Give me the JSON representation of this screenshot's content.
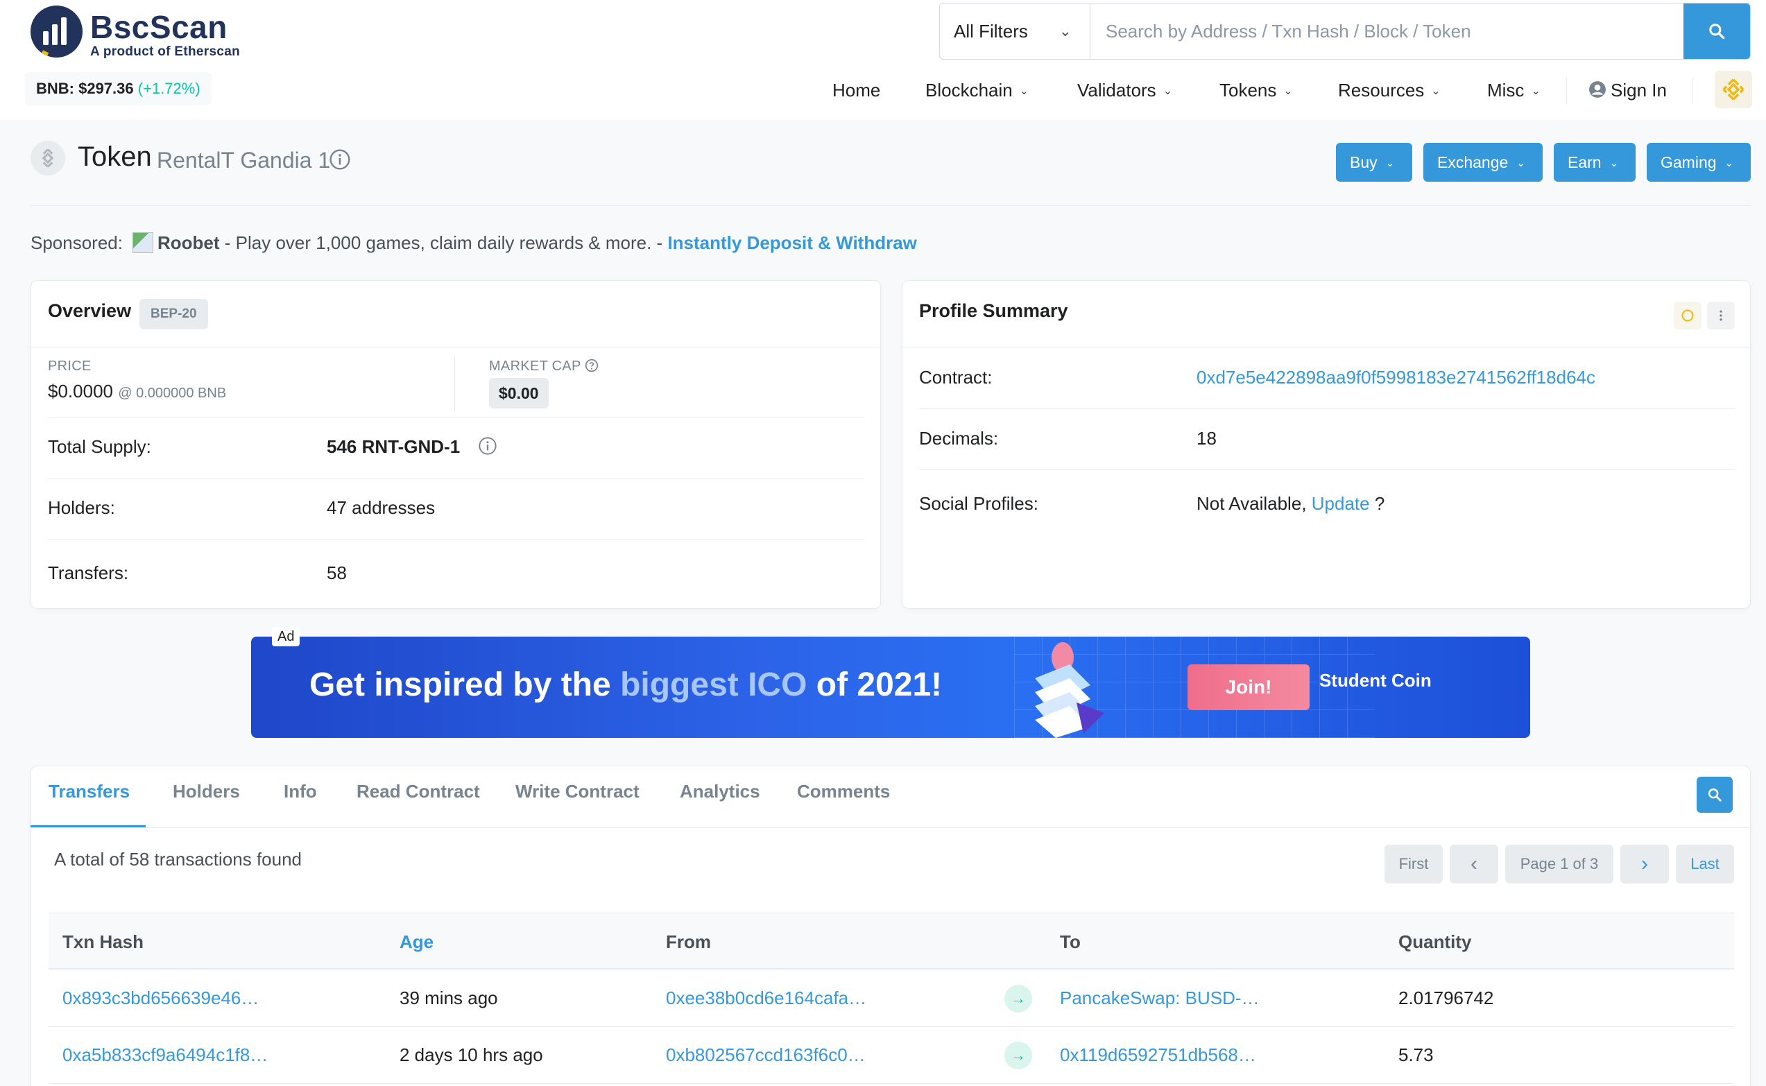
{
  "brand": {
    "name": "BscScan",
    "tagline": "A product of Etherscan"
  },
  "price": {
    "label": "BNB: $297.36",
    "change": "(+1.72%)"
  },
  "search": {
    "filter": "All Filters",
    "placeholder": "Search by Address / Txn Hash / Block / Token"
  },
  "nav": {
    "items": [
      "Home",
      "Blockchain",
      "Validators",
      "Tokens",
      "Resources",
      "Misc"
    ],
    "sign_in": "Sign In"
  },
  "title": {
    "prefix": "Token",
    "name": "RentalT Gandia 1"
  },
  "actions": [
    "Buy",
    "Exchange",
    "Earn",
    "Gaming"
  ],
  "sponsored": {
    "label": "Sponsored:",
    "brand": "Roobet",
    "text": " - Play over 1,000 games, claim daily rewards & more. - ",
    "cta": "Instantly Deposit & Withdraw"
  },
  "overview": {
    "title": "Overview",
    "badge": "BEP-20",
    "price_label": "PRICE",
    "price_value": "$0.0000",
    "price_bnb": "@ 0.000000 BNB",
    "mcap_label": "MARKET CAP",
    "mcap_value": "$0.00",
    "supply_label": "Total Supply:",
    "supply_value": "546 RNT-GND-1",
    "holders_label": "Holders:",
    "holders_value": "47 addresses",
    "transfers_label": "Transfers:",
    "transfers_value": "58"
  },
  "profile": {
    "title": "Profile Summary",
    "contract_label": "Contract:",
    "contract_value": "0xd7e5e422898aa9f0f5998183e2741562ff18d64c",
    "decimals_label": "Decimals:",
    "decimals_value": "18",
    "social_label": "Social Profiles:",
    "social_value": "Not Available, ",
    "social_link": "Update",
    "social_suffix": " ?"
  },
  "ad": {
    "tag": "Ad",
    "text_a": "Get inspired by the ",
    "text_b": "biggest ICO",
    "text_c": " of 2021!",
    "join": "Join!",
    "coin": "Student Coin"
  },
  "tabs": [
    "Transfers",
    "Holders",
    "Info",
    "Read Contract",
    "Write Contract",
    "Analytics",
    "Comments"
  ],
  "summary": "A total of 58 transactions found",
  "pagination": {
    "first": "First",
    "prev": "‹",
    "page": "Page 1 of 3",
    "next": "›",
    "last": "Last"
  },
  "table": {
    "headers": [
      "Txn Hash",
      "Age",
      "From",
      "To",
      "Quantity"
    ],
    "rows": [
      {
        "hash": "0x893c3bd656639e46…",
        "age": "39 mins ago",
        "from": "0xee38b0cd6e164cafa…",
        "to": "PancakeSwap: BUSD-…",
        "qty": "2.01796742"
      },
      {
        "hash": "0xa5b833cf9a6494c1f8…",
        "age": "2 days 10 hrs ago",
        "from": "0xb802567ccd163f6c0…",
        "to": "0x119d6592751db568…",
        "qty": "5.73"
      }
    ]
  },
  "colors": {
    "accent": "#3498db",
    "brand": "#21325b",
    "success": "#00c9a7",
    "bnb": "#f0b90b"
  }
}
